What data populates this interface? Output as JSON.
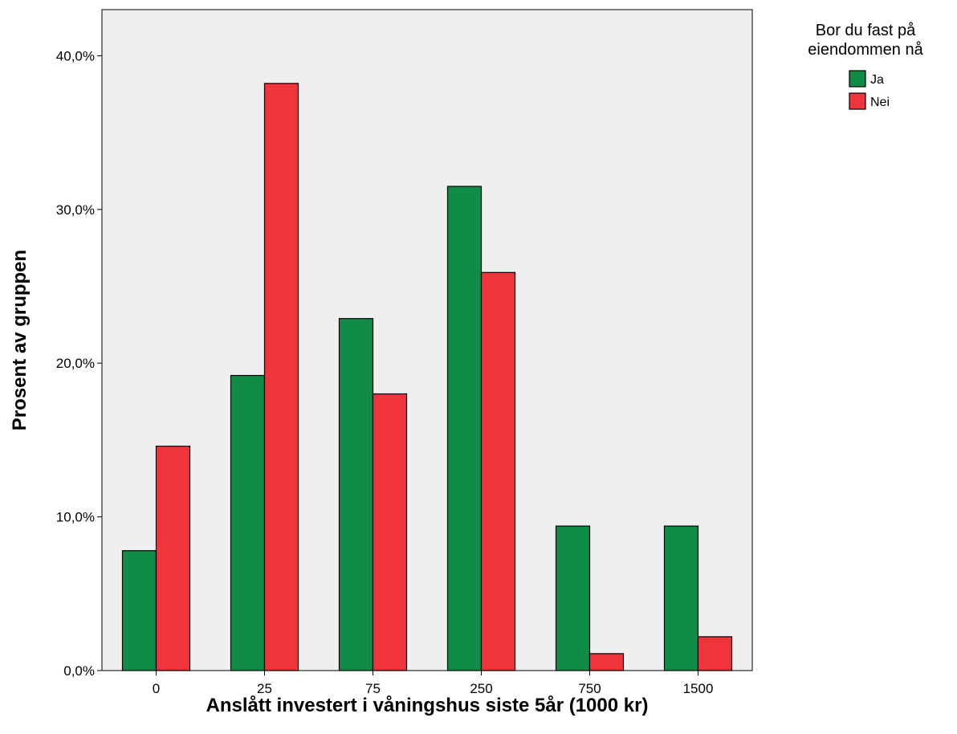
{
  "chart_data": {
    "type": "bar",
    "xlabel": "Anslått investert i våningshus siste 5år (1000 kr)",
    "ylabel": "Prosent av gruppen",
    "categories": [
      "0",
      "25",
      "75",
      "250",
      "750",
      "1500"
    ],
    "ylim": [
      0,
      43.0
    ],
    "yticks": [
      {
        "value": 0,
        "label": "0,0%"
      },
      {
        "value": 10,
        "label": "10,0%"
      },
      {
        "value": 20,
        "label": "20,0%"
      },
      {
        "value": 30,
        "label": "30,0%"
      },
      {
        "value": 40,
        "label": "40,0%"
      }
    ],
    "legend": {
      "title_lines": [
        "Bor du fast på",
        "eiendommen nå"
      ],
      "position": "right"
    },
    "series": [
      {
        "name": "Ja",
        "color": "#118C46",
        "values": [
          7.8,
          19.2,
          22.9,
          31.5,
          9.4,
          9.4
        ]
      },
      {
        "name": "Nei",
        "color": "#F0343C",
        "values": [
          14.6,
          38.2,
          18.0,
          25.9,
          1.1,
          2.2
        ]
      }
    ],
    "plot_background": "#EFEFEF",
    "grid": false
  }
}
